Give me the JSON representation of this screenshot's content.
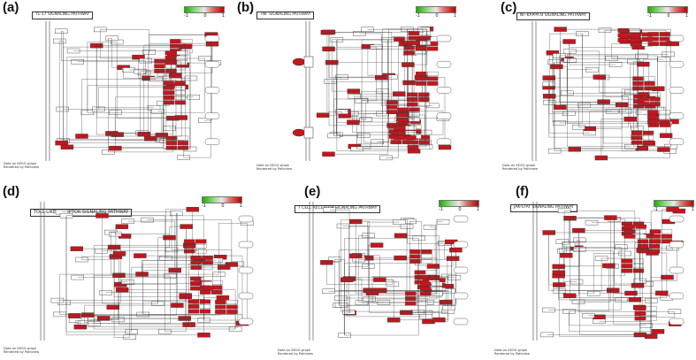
{
  "panels": [
    {
      "letter": "(a)",
      "title": "TL-17 SIGNALING PATHWAY",
      "footnote": [
        "Data on KEGG graph",
        "Rendered by Pathview"
      ],
      "legend": [
        "-1",
        "0",
        "1"
      ]
    },
    {
      "letter": "(b)",
      "title": "TNF SIGNALING PATHWAY",
      "footnote": [
        "Data on KEGG graph",
        "Rendered by Pathview"
      ],
      "legend": [
        "-1",
        "0",
        "1"
      ]
    },
    {
      "letter": "(c)",
      "title": "NF-KAPPA B SIGNALING PATHWAY",
      "footnote": [
        "Data on KEGG graph",
        "Rendered by Pathview"
      ],
      "legend": [
        "-1",
        "0",
        "1"
      ]
    },
    {
      "letter": "(d)",
      "title": "TOLL-LIKE RECEPTOR SIGNALING PATHWAY",
      "footnote": [
        "Data on KEGG graph",
        "Rendered by Pathview"
      ],
      "legend": [
        "-1",
        "0",
        "1"
      ]
    },
    {
      "letter": "(e)",
      "title": "T CELL RECEPTOR SIGNALING PATHWAY",
      "footnote": [
        "Data on KEGG graph",
        "Rendered by Pathview"
      ],
      "legend": [
        "-1",
        "0",
        "1"
      ]
    },
    {
      "letter": "(f)",
      "title": "JAK-STAT SIGNALING PATHWAY",
      "footnote": [
        "Data on KEGG graph",
        "Rendered by Pathview"
      ],
      "legend": [
        "-1",
        "0",
        "1"
      ]
    }
  ],
  "colors": {
    "upregulated": "#c8151b",
    "neutral": "#ffffff",
    "downregulated": "#19b000",
    "line": "#444444"
  }
}
